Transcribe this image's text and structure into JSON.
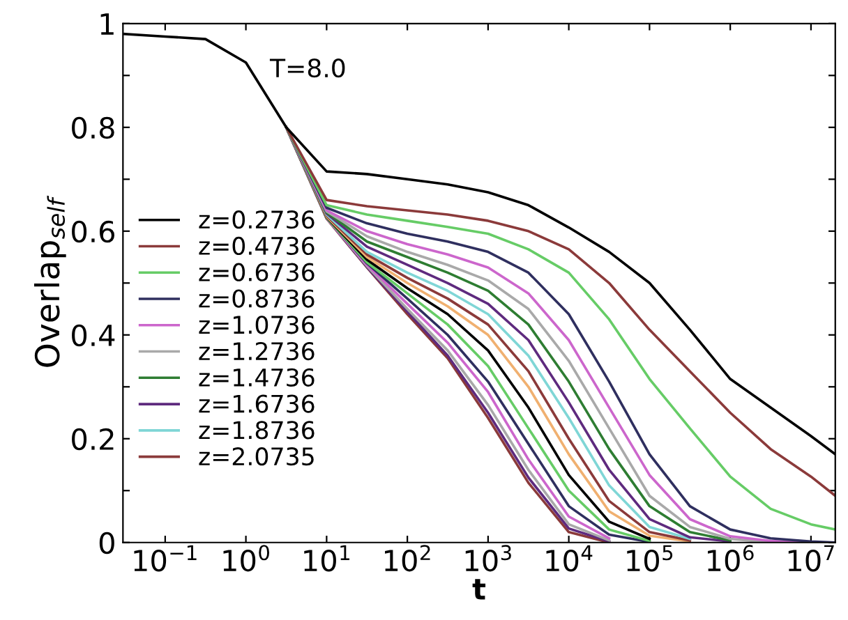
{
  "chart_data": {
    "type": "line",
    "xlabel": "t",
    "ylabel": "Overlap$_{self}$",
    "annotations": [
      "T=8.0"
    ],
    "log": "x",
    "xlim": [
      0.03,
      20000000
    ],
    "ylim": [
      0,
      1
    ],
    "xticks": [
      {
        "value": 0.1,
        "label": "10$^{−1}$"
      },
      {
        "value": 1,
        "label": "10$^{0}$"
      },
      {
        "value": 10,
        "label": "10$^{1}$"
      },
      {
        "value": 100,
        "label": "10$^{2}$"
      },
      {
        "value": 1000,
        "label": "10$^{3}$"
      },
      {
        "value": 10000,
        "label": "10$^{4}$"
      },
      {
        "value": 100000,
        "label": "10$^{5}$"
      },
      {
        "value": 1000000,
        "label": "10$^{6}$"
      },
      {
        "value": 10000000,
        "label": "10$^{7}$"
      }
    ],
    "yticks": [
      0,
      {
        "value": 0.1,
        "label": null
      },
      0.2,
      {
        "value": 0.3,
        "label": null
      },
      0.4,
      {
        "value": 0.5,
        "label": null
      },
      0.6,
      {
        "value": 0.7,
        "label": null
      },
      0.8,
      {
        "value": 0.9,
        "label": null
      },
      1
    ],
    "grid": false,
    "legend": "left",
    "marker": "none",
    "line_style": "solid",
    "x": [
      0.0316,
      0.1,
      0.316,
      1,
      3.16,
      10,
      31.6,
      100,
      316,
      1000,
      3162,
      10000,
      31623,
      100000,
      316228,
      1000000,
      3162278,
      10000000,
      20000000
    ],
    "series": [
      {
        "name": "z=0.2736",
        "color": "#000000",
        "values": [
          0.98,
          0.975,
          0.97,
          0.925,
          0.8,
          0.715,
          0.71,
          0.7,
          0.69,
          0.675,
          0.65,
          0.607,
          0.56,
          0.5,
          0.41,
          0.315,
          0.26,
          0.205,
          0.17
        ]
      },
      {
        "name": "z=0.4736",
        "color": "#8b3a3a",
        "values": [
          null,
          null,
          null,
          null,
          0.8,
          0.66,
          0.648,
          0.64,
          0.632,
          0.62,
          0.6,
          0.565,
          0.5,
          0.41,
          0.33,
          0.25,
          0.18,
          0.127,
          0.09
        ]
      },
      {
        "name": "z=0.6736",
        "color": "#66cc66",
        "values": [
          null,
          null,
          null,
          null,
          0.8,
          0.65,
          0.632,
          0.62,
          0.608,
          0.595,
          0.565,
          0.52,
          0.43,
          0.315,
          0.22,
          0.127,
          0.065,
          0.035,
          0.025
        ]
      },
      {
        "name": "z=0.8736",
        "color": "#2f2f5f",
        "values": [
          null,
          null,
          null,
          null,
          0.8,
          0.645,
          0.615,
          0.595,
          0.58,
          0.56,
          0.52,
          0.44,
          0.31,
          0.17,
          0.07,
          0.025,
          0.008,
          0.002,
          0
        ]
      },
      {
        "name": "z=1.0736",
        "color": "#cc66cc",
        "values": [
          null,
          null,
          null,
          null,
          0.8,
          0.64,
          0.6,
          0.575,
          0.555,
          0.53,
          0.48,
          0.39,
          0.26,
          0.13,
          0.045,
          0.012,
          0.003,
          0,
          null
        ]
      },
      {
        "name": "z=1.2736",
        "color": "#a9a9a9",
        "values": [
          null,
          null,
          null,
          null,
          0.8,
          0.638,
          0.59,
          0.56,
          0.535,
          0.505,
          0.45,
          0.35,
          0.22,
          0.09,
          0.03,
          0.007,
          0,
          null,
          null
        ]
      },
      {
        "name": "z=1.4736",
        "color": "#2e7d32",
        "values": [
          null,
          null,
          null,
          null,
          0.8,
          0.636,
          0.58,
          0.55,
          0.52,
          0.485,
          0.42,
          0.31,
          0.18,
          0.07,
          0.02,
          0.004,
          null,
          null,
          null
        ]
      },
      {
        "name": "z=1.6736",
        "color": "#5e2a7e",
        "values": [
          null,
          null,
          null,
          null,
          0.8,
          0.634,
          0.57,
          0.535,
          0.5,
          0.46,
          0.39,
          0.27,
          0.14,
          0.045,
          0.01,
          0.002,
          null,
          null,
          null
        ]
      },
      {
        "name": "z=1.8736",
        "color": "#7fd6d6",
        "values": [
          null,
          null,
          null,
          null,
          0.8,
          0.632,
          0.56,
          0.52,
          0.485,
          0.44,
          0.36,
          0.24,
          0.11,
          0.03,
          0.007,
          null,
          null,
          null,
          null
        ]
      },
      {
        "name": "z=2.0735",
        "color": "#8b3a3a",
        "values": [
          null,
          null,
          null,
          null,
          0.8,
          0.63,
          0.555,
          0.51,
          0.47,
          0.42,
          0.33,
          0.2,
          0.08,
          0.02,
          0.004,
          null,
          null,
          null,
          null
        ]
      },
      {
        "color": "#f0b070",
        "values": [
          null,
          null,
          null,
          null,
          0.8,
          0.628,
          0.55,
          0.5,
          0.455,
          0.4,
          0.3,
          0.17,
          0.06,
          0.013,
          0.002,
          null,
          null,
          null,
          null
        ]
      },
      {
        "color": "#000000",
        "values": [
          null,
          null,
          null,
          null,
          0.8,
          0.627,
          0.545,
          0.49,
          0.44,
          0.37,
          0.26,
          0.13,
          0.04,
          0.007,
          null,
          null,
          null,
          null,
          null
        ]
      },
      {
        "color": "#66cc66",
        "values": [
          null,
          null,
          null,
          null,
          0.8,
          0.626,
          0.54,
          0.48,
          0.42,
          0.34,
          0.22,
          0.1,
          0.025,
          0.003,
          null,
          null,
          null,
          null,
          null
        ]
      },
      {
        "color": "#2f2f5f",
        "values": [
          null,
          null,
          null,
          null,
          0.8,
          0.626,
          0.538,
          0.47,
          0.4,
          0.31,
          0.19,
          0.07,
          0.015,
          0.001,
          null,
          null,
          null,
          null,
          null
        ]
      },
      {
        "color": "#cc66cc",
        "values": [
          null,
          null,
          null,
          null,
          0.8,
          0.625,
          0.535,
          0.46,
          0.385,
          0.29,
          0.16,
          0.05,
          0.008,
          null,
          null,
          null,
          null,
          null,
          null
        ]
      },
      {
        "color": "#a9a9a9",
        "values": [
          null,
          null,
          null,
          null,
          0.8,
          0.625,
          0.533,
          0.45,
          0.37,
          0.265,
          0.14,
          0.035,
          0.004,
          null,
          null,
          null,
          null,
          null,
          null
        ]
      },
      {
        "color": "#5e2a7e",
        "values": [
          null,
          null,
          null,
          null,
          0.8,
          0.625,
          0.531,
          0.445,
          0.36,
          0.25,
          0.125,
          0.027,
          0.002,
          null,
          null,
          null,
          null,
          null,
          null
        ]
      },
      {
        "color": "#8b3a3a",
        "values": [
          null,
          null,
          null,
          null,
          0.8,
          0.624,
          0.53,
          0.44,
          0.355,
          0.24,
          0.115,
          0.02,
          0,
          null,
          null,
          null,
          null,
          null,
          null
        ]
      }
    ]
  }
}
